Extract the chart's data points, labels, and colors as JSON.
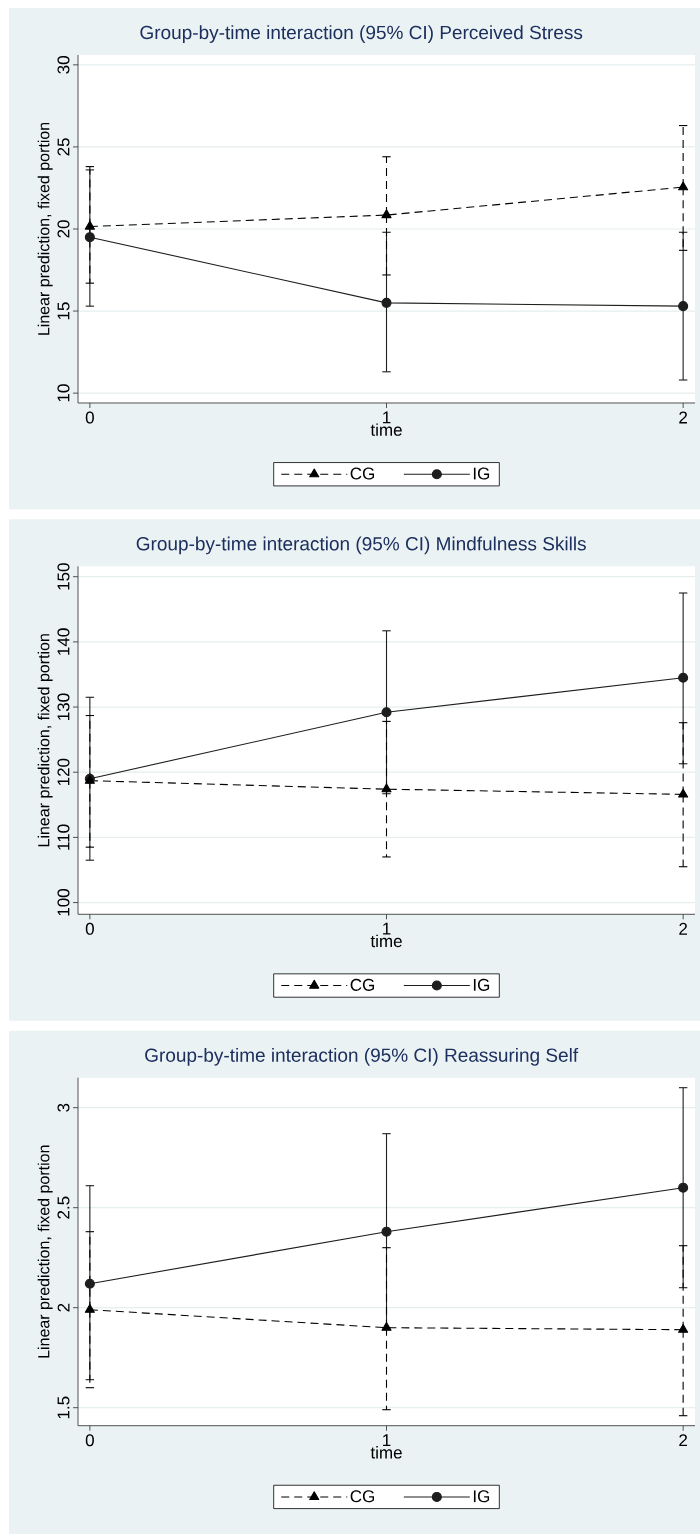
{
  "chart_data": [
    {
      "type": "line",
      "title": "Group-by-time interaction (95% CI) Perceived Stress",
      "xlabel": "time",
      "ylabel": "Linear prediction, fixed portion",
      "x": [
        0,
        1,
        2
      ],
      "xlim": [
        -0.04,
        2.04
      ],
      "xticks": [
        0,
        1,
        2
      ],
      "ylim": [
        9.4,
        30.6
      ],
      "yticks": [
        10,
        15,
        20,
        25,
        30
      ],
      "grid": "y",
      "legend": "bottom",
      "series": [
        {
          "name": "CG",
          "color": "#000000",
          "marker": "triangle",
          "line_style": "dashed",
          "values": [
            20.15,
            20.85,
            22.55
          ],
          "errors": [
            [
              16.7,
              23.8
            ],
            [
              17.2,
              24.4
            ],
            [
              18.7,
              26.3
            ]
          ]
        },
        {
          "name": "IG",
          "color": "#1e1e1e",
          "marker": "circle",
          "line_style": "solid",
          "values": [
            19.5,
            15.5,
            15.3
          ],
          "errors": [
            [
              15.3,
              23.6
            ],
            [
              11.3,
              19.8
            ],
            [
              10.8,
              19.8
            ]
          ]
        }
      ]
    },
    {
      "type": "line",
      "title": "Group-by-time interaction (95% CI) Mindfulness Skills",
      "xlabel": "time",
      "ylabel": "Linear prediction, fixed portion",
      "x": [
        0,
        1,
        2
      ],
      "xlim": [
        -0.04,
        2.04
      ],
      "xticks": [
        0,
        1,
        2
      ],
      "ylim": [
        98.2,
        151.6
      ],
      "yticks": [
        100,
        110,
        120,
        130,
        140,
        150
      ],
      "grid": "y",
      "legend": "bottom",
      "series": [
        {
          "name": "CG",
          "color": "#000000",
          "marker": "triangle",
          "line_style": "dashed",
          "values": [
            118.7,
            117.4,
            116.6
          ],
          "errors": [
            [
              108.5,
              128.7
            ],
            [
              107.0,
              127.8
            ],
            [
              105.5,
              127.6
            ]
          ]
        },
        {
          "name": "IG",
          "color": "#1e1e1e",
          "marker": "circle",
          "line_style": "solid",
          "values": [
            119.0,
            129.2,
            134.5
          ],
          "errors": [
            [
              106.5,
              131.5
            ],
            [
              116.7,
              141.7
            ],
            [
              121.3,
              147.5
            ]
          ]
        }
      ]
    },
    {
      "type": "line",
      "title": "Group-by-time interaction (95% CI) Reassuring Self",
      "xlabel": "time",
      "ylabel": "Linear prediction, fixed portion",
      "x": [
        0,
        1,
        2
      ],
      "xlim": [
        -0.04,
        2.04
      ],
      "xticks": [
        0,
        1,
        2
      ],
      "ylim": [
        1.41,
        3.15
      ],
      "yticks": [
        1.5,
        2,
        2.5,
        3
      ],
      "grid": "y",
      "legend": "bottom",
      "series": [
        {
          "name": "CG",
          "color": "#000000",
          "marker": "triangle",
          "line_style": "dashed",
          "values": [
            1.99,
            1.9,
            1.89
          ],
          "errors": [
            [
              1.6,
              2.38
            ],
            [
              1.49,
              2.3
            ],
            [
              1.46,
              2.31
            ]
          ]
        },
        {
          "name": "IG",
          "color": "#1e1e1e",
          "marker": "circle",
          "line_style": "solid",
          "values": [
            2.12,
            2.38,
            2.6
          ],
          "errors": [
            [
              1.64,
              2.61
            ],
            [
              1.9,
              2.87
            ],
            [
              2.1,
              3.1
            ]
          ]
        }
      ]
    }
  ]
}
